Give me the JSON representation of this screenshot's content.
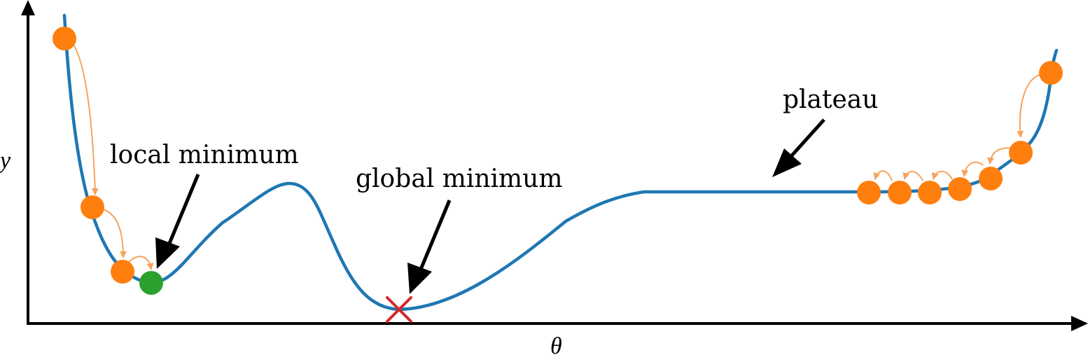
{
  "labels": {
    "x_axis": "θ",
    "y_axis": "y",
    "local_minimum": "local minimum",
    "global_minimum": "global minimum",
    "plateau": "plateau"
  },
  "colors": {
    "curve": "#1f77b4",
    "optimizer_point": "#ff7f0e",
    "step_arrow": "#f5a25d",
    "local_minimum_point": "#2ca02c",
    "global_minimum_marker": "#d62728",
    "axis": "#000000",
    "pointer_arrow": "#000000"
  },
  "icons": {
    "global_minimum_marker": "x-cross-icon"
  }
}
